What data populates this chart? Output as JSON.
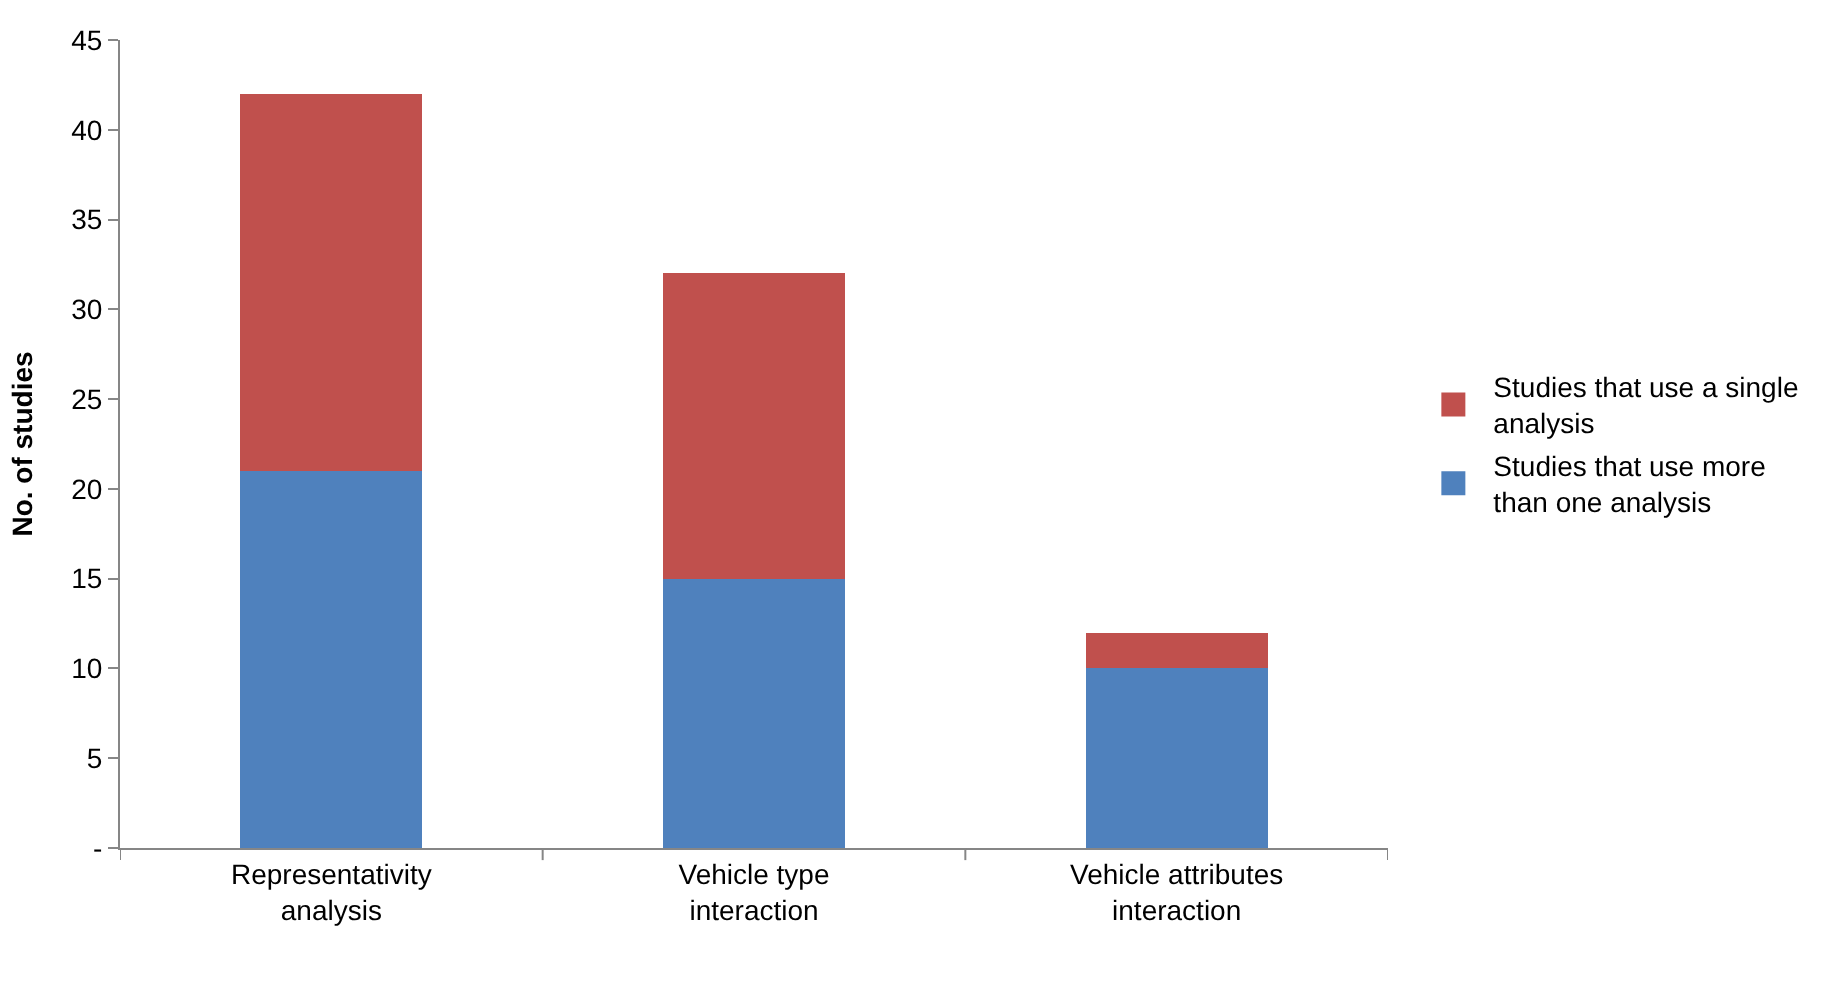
{
  "chart_data": {
    "type": "bar",
    "stacked": true,
    "ylabel": "No. of studies",
    "categories": [
      "Representativity analysis",
      "Vehicle type interaction",
      "Vehicle attributes interaction"
    ],
    "series": [
      {
        "name": "Studies that use more than one analysis",
        "color": "#4f81bd",
        "values": [
          21,
          15,
          10
        ]
      },
      {
        "name": "Studies that use a single analysis",
        "color": "#c0504d",
        "values": [
          21,
          17,
          2
        ]
      }
    ],
    "ylim": [
      0,
      45
    ],
    "yticks": [
      {
        "value": 0,
        "label": "-"
      },
      5,
      10,
      15,
      20,
      25,
      30,
      35,
      40,
      45
    ],
    "legend": "right"
  }
}
